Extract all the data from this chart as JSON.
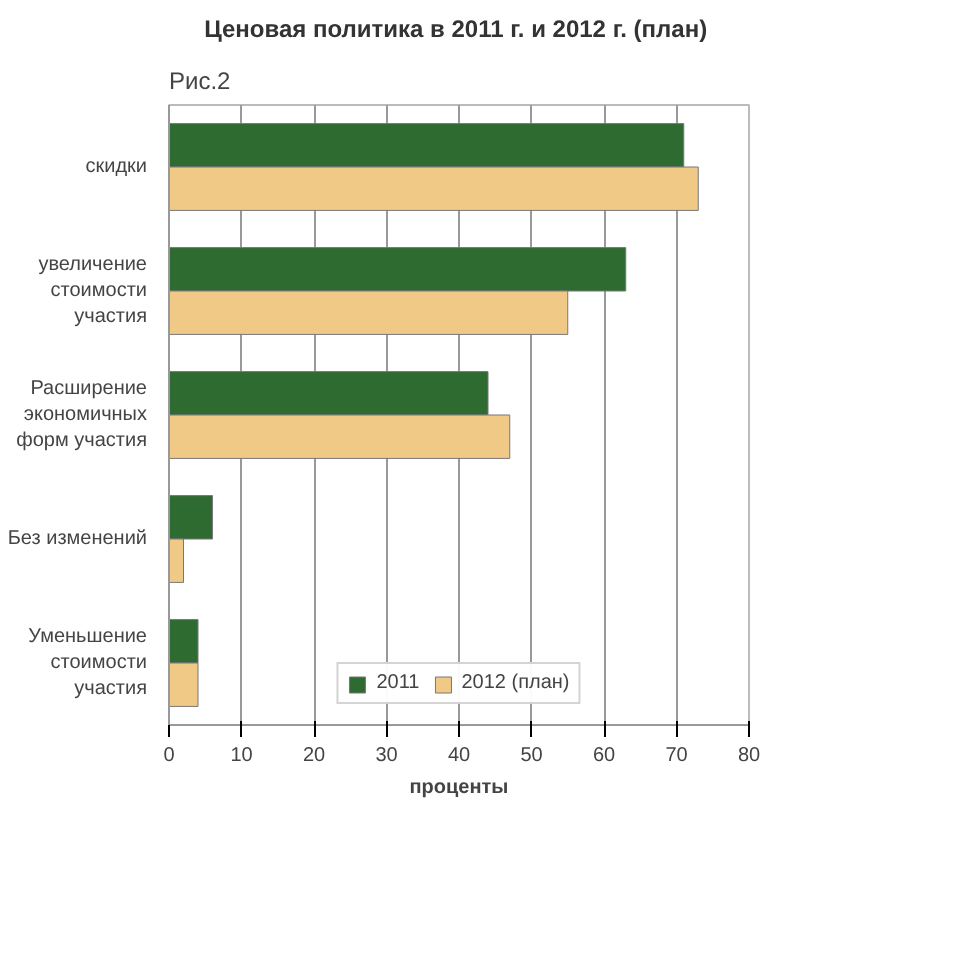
{
  "chart_data": {
    "type": "bar",
    "orientation": "horizontal",
    "title": "Ценовая политика в 2011 г. и  2012 г. (план)",
    "annotations": [
      "Рис.2"
    ],
    "xlabel": "проценты",
    "categories": [
      "скидки",
      "увеличение\nстоимости\nучастия",
      "Расширение\nэкономичных\nформ участия",
      "Без изменений",
      "Уменьшение\nстоимости\nучастия"
    ],
    "series": [
      {
        "name": "2011",
        "color": "#2e6b30",
        "values": [
          71,
          63,
          44,
          6,
          4
        ]
      },
      {
        "name": "2012 (план)",
        "color": "#f0c987",
        "values": [
          73,
          55,
          47,
          2,
          4
        ]
      }
    ],
    "xlim": [
      0,
      80
    ],
    "xticks": [
      0,
      10,
      20,
      30,
      40,
      50,
      60,
      70,
      80
    ],
    "grid": "x",
    "legend": "bottom"
  }
}
